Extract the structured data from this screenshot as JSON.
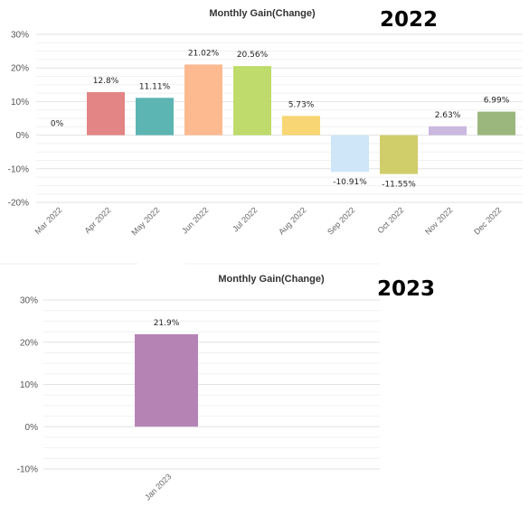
{
  "chart_data": [
    {
      "type": "bar",
      "title": "Monthly Gain(Change)",
      "year_label": "2022",
      "categories": [
        "Mar 2022",
        "Apr 2022",
        "May 2022",
        "Jun 2022",
        "Jul 2022",
        "Aug 2022",
        "Sep 2022",
        "Oct 2022",
        "Nov 2022",
        "Dec 2022"
      ],
      "values": [
        0,
        12.8,
        11.11,
        21.02,
        20.56,
        5.73,
        -10.91,
        -11.55,
        2.63,
        6.99
      ],
      "data_labels": [
        "0%",
        "12.8%",
        "11.11%",
        "21.02%",
        "20.56%",
        "5.73%",
        "-10.91%",
        "-11.55%",
        "2.63%",
        "6.99%"
      ],
      "colors": [
        "#e5e5e5",
        "#e38585",
        "#5cb5b3",
        "#fdba91",
        "#bedb6b",
        "#f7d673",
        "#cfe6f8",
        "#d0cd6b",
        "#cbb8df",
        "#9bb77d"
      ],
      "ylim": [
        -20,
        30
      ],
      "yticks": [
        "30%",
        "20%",
        "10%",
        "0%",
        "-10%",
        "-20%"
      ],
      "xlabel": "",
      "ylabel": "",
      "grid": true
    },
    {
      "type": "bar",
      "title": "Monthly Gain(Change)",
      "year_label": "2023",
      "categories": [
        "Jan 2023"
      ],
      "values": [
        21.9
      ],
      "data_labels": [
        "21.9%"
      ],
      "colors": [
        "#b584b5"
      ],
      "ylim": [
        -10,
        30
      ],
      "yticks": [
        "30%",
        "20%",
        "10%",
        "0%",
        "-10%"
      ],
      "xlabel": "",
      "ylabel": "",
      "grid": true
    }
  ]
}
